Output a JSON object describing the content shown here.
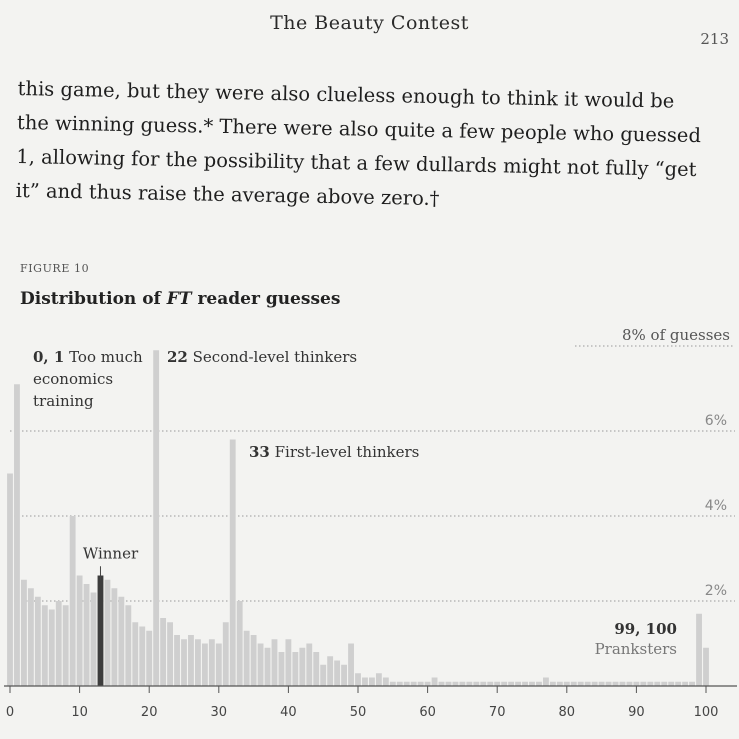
{
  "page": {
    "running_head": "The Beauty Contest",
    "page_number": "213",
    "paragraph_lines": [
      "this game, but they were also clueless enough to think it would be",
      "the winning guess.* There were also quite a few people who guessed",
      "1, allowing for the possibility that a few dullards might not fully “get",
      "it” and thus raise the average above zero.†"
    ]
  },
  "figure": {
    "label": "FIGURE 10",
    "title_before": "Distribution of ",
    "title_em": "FT",
    "title_after": " reader guesses"
  },
  "chart_data": {
    "type": "bar",
    "title": "Distribution of FT reader guesses",
    "xlabel": "",
    "ylabel": "",
    "xlim": [
      0,
      100
    ],
    "ylim": [
      0,
      8
    ],
    "grid": true,
    "x_ticks": [
      "0",
      "10",
      "20",
      "30",
      "40",
      "50",
      "60",
      "70",
      "80",
      "90",
      "100"
    ],
    "y_ticks": [
      {
        "value": 2,
        "label": "2%"
      },
      {
        "value": 4,
        "label": "4%"
      },
      {
        "value": 6,
        "label": "6%"
      },
      {
        "value": 8,
        "label": "8% of guesses"
      }
    ],
    "highlight": {
      "x": 13,
      "label": "Winner",
      "color": "#3d3d3d"
    },
    "bar_color": "#cfcfcf",
    "annotations": [
      {
        "bold": "0, 1",
        "text": " Too much",
        "extra_lines": [
          "economics",
          "training"
        ]
      },
      {
        "bold": "22",
        "text": " Second-level thinkers"
      },
      {
        "bold": "33",
        "text": " First-level thinkers"
      },
      {
        "bold": "99, 100",
        "text": "Pranksters"
      }
    ],
    "x": [
      0,
      1,
      2,
      3,
      4,
      5,
      6,
      7,
      8,
      9,
      10,
      11,
      12,
      13,
      14,
      15,
      16,
      17,
      18,
      19,
      20,
      21,
      22,
      23,
      24,
      25,
      26,
      27,
      28,
      29,
      30,
      31,
      32,
      33,
      34,
      35,
      36,
      37,
      38,
      39,
      40,
      41,
      42,
      43,
      44,
      45,
      46,
      47,
      48,
      49,
      50,
      51,
      52,
      53,
      54,
      55,
      56,
      57,
      58,
      59,
      60,
      61,
      62,
      63,
      64,
      65,
      66,
      67,
      68,
      69,
      70,
      71,
      72,
      73,
      74,
      75,
      76,
      77,
      78,
      79,
      80,
      81,
      82,
      83,
      84,
      85,
      86,
      87,
      88,
      89,
      90,
      91,
      92,
      93,
      94,
      95,
      96,
      97,
      98,
      99,
      100
    ],
    "values": [
      5.0,
      7.1,
      2.5,
      2.3,
      2.1,
      1.9,
      1.8,
      2.0,
      1.9,
      4.0,
      2.6,
      2.4,
      2.2,
      2.6,
      2.5,
      2.3,
      2.1,
      1.9,
      1.5,
      1.4,
      1.3,
      7.9,
      1.6,
      1.5,
      1.2,
      1.1,
      1.2,
      1.1,
      1.0,
      1.1,
      1.0,
      1.5,
      5.8,
      2.0,
      1.3,
      1.2,
      1.0,
      0.9,
      1.1,
      0.8,
      1.1,
      0.8,
      0.9,
      1.0,
      0.8,
      0.5,
      0.7,
      0.6,
      0.5,
      1.0,
      0.3,
      0.2,
      0.2,
      0.3,
      0.2,
      0.1,
      0.1,
      0.1,
      0.1,
      0.1,
      0.1,
      0.2,
      0.1,
      0.1,
      0.1,
      0.1,
      0.1,
      0.1,
      0.1,
      0.1,
      0.1,
      0.1,
      0.1,
      0.1,
      0.1,
      0.1,
      0.1,
      0.2,
      0.1,
      0.1,
      0.1,
      0.1,
      0.1,
      0.1,
      0.1,
      0.1,
      0.1,
      0.1,
      0.1,
      0.1,
      0.1,
      0.1,
      0.1,
      0.1,
      0.1,
      0.1,
      0.1,
      0.1,
      0.1,
      1.7,
      0.9
    ]
  }
}
